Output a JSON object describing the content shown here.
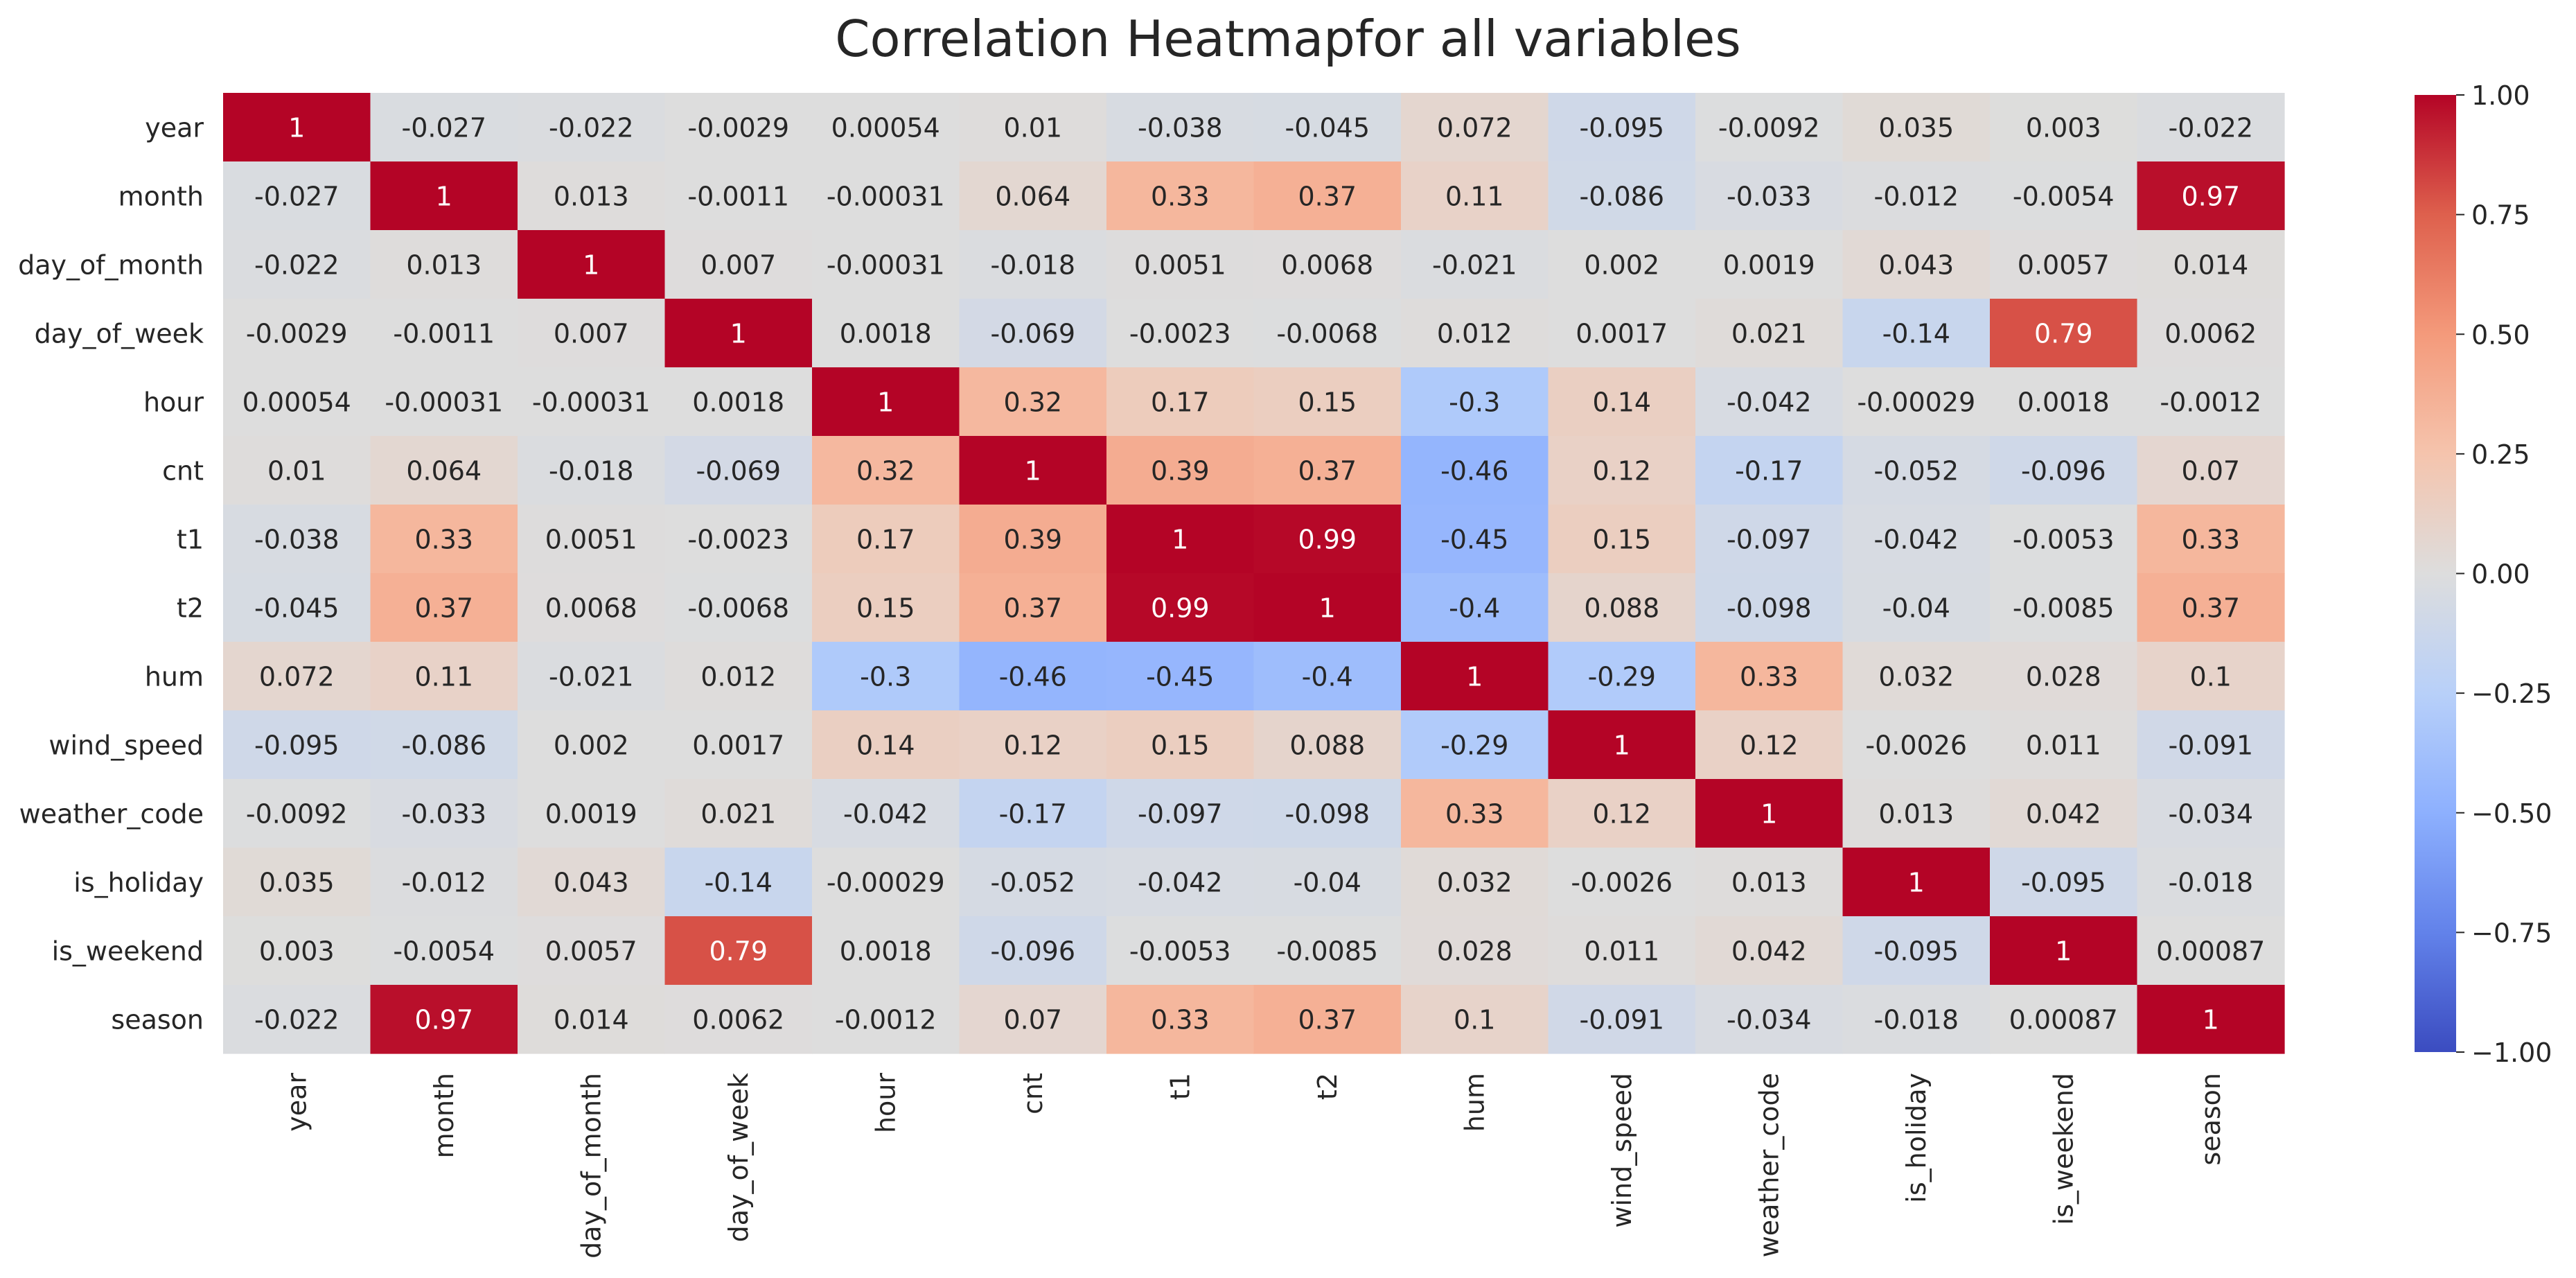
{
  "chart_data": {
    "type": "heatmap",
    "title": "Correlation Heatmapfor all variables",
    "row_labels": [
      "year",
      "month",
      "day_of_month",
      "day_of_week",
      "hour",
      "cnt",
      "t1",
      "t2",
      "hum",
      "wind_speed",
      "weather_code",
      "is_holiday",
      "is_weekend",
      "season"
    ],
    "col_labels": [
      "year",
      "month",
      "day_of_month",
      "day_of_week",
      "hour",
      "cnt",
      "t1",
      "t2",
      "hum",
      "wind_speed",
      "weather_code",
      "is_holiday",
      "is_weekend",
      "season"
    ],
    "values": [
      [
        "1",
        "-0.027",
        "-0.022",
        "-0.0029",
        "0.00054",
        "0.01",
        "-0.038",
        "-0.045",
        "0.072",
        "-0.095",
        "-0.0092",
        "0.035",
        "0.003",
        "-0.022"
      ],
      [
        "-0.027",
        "1",
        "0.013",
        "-0.0011",
        "-0.00031",
        "0.064",
        "0.33",
        "0.37",
        "0.11",
        "-0.086",
        "-0.033",
        "-0.012",
        "-0.0054",
        "0.97"
      ],
      [
        "-0.022",
        "0.013",
        "1",
        "0.007",
        "-0.00031",
        "-0.018",
        "0.0051",
        "0.0068",
        "-0.021",
        "0.002",
        "0.0019",
        "0.043",
        "0.0057",
        "0.014"
      ],
      [
        "-0.0029",
        "-0.0011",
        "0.007",
        "1",
        "0.0018",
        "-0.069",
        "-0.0023",
        "-0.0068",
        "0.012",
        "0.0017",
        "0.021",
        "-0.14",
        "0.79",
        "0.0062"
      ],
      [
        "0.00054",
        "-0.00031",
        "-0.00031",
        "0.0018",
        "1",
        "0.32",
        "0.17",
        "0.15",
        "-0.3",
        "0.14",
        "-0.042",
        "-0.00029",
        "0.0018",
        "-0.0012"
      ],
      [
        "0.01",
        "0.064",
        "-0.018",
        "-0.069",
        "0.32",
        "1",
        "0.39",
        "0.37",
        "-0.46",
        "0.12",
        "-0.17",
        "-0.052",
        "-0.096",
        "0.07"
      ],
      [
        "-0.038",
        "0.33",
        "0.0051",
        "-0.0023",
        "0.17",
        "0.39",
        "1",
        "0.99",
        "-0.45",
        "0.15",
        "-0.097",
        "-0.042",
        "-0.0053",
        "0.33"
      ],
      [
        "-0.045",
        "0.37",
        "0.0068",
        "-0.0068",
        "0.15",
        "0.37",
        "0.99",
        "1",
        "-0.4",
        "0.088",
        "-0.098",
        "-0.04",
        "-0.0085",
        "0.37"
      ],
      [
        "0.072",
        "0.11",
        "-0.021",
        "0.012",
        "-0.3",
        "-0.46",
        "-0.45",
        "-0.4",
        "1",
        "-0.29",
        "0.33",
        "0.032",
        "0.028",
        "0.1"
      ],
      [
        "-0.095",
        "-0.086",
        "0.002",
        "0.0017",
        "0.14",
        "0.12",
        "0.15",
        "0.088",
        "-0.29",
        "1",
        "0.12",
        "-0.0026",
        "0.011",
        "-0.091"
      ],
      [
        "-0.0092",
        "-0.033",
        "0.0019",
        "0.021",
        "-0.042",
        "-0.17",
        "-0.097",
        "-0.098",
        "0.33",
        "0.12",
        "1",
        "0.013",
        "0.042",
        "-0.034"
      ],
      [
        "0.035",
        "-0.012",
        "0.043",
        "-0.14",
        "-0.00029",
        "-0.052",
        "-0.042",
        "-0.04",
        "0.032",
        "-0.0026",
        "0.013",
        "1",
        "-0.095",
        "-0.018"
      ],
      [
        "0.003",
        "-0.0054",
        "0.0057",
        "0.79",
        "0.0018",
        "-0.096",
        "-0.0053",
        "-0.0085",
        "0.028",
        "0.011",
        "0.042",
        "-0.095",
        "1",
        "0.00087"
      ],
      [
        "-0.022",
        "0.97",
        "0.014",
        "0.0062",
        "-0.0012",
        "0.07",
        "0.33",
        "0.37",
        "0.1",
        "-0.091",
        "-0.034",
        "-0.018",
        "0.00087",
        "1"
      ]
    ],
    "colormap": "coolwarm",
    "vmin": -1.0,
    "vmax": 1.0,
    "colorbar_ticks": [
      "1.00",
      "0.75",
      "0.50",
      "0.25",
      "0.00",
      "−0.25",
      "−0.50",
      "−0.75",
      "−1.00"
    ],
    "colorbar_tick_values": [
      1.0,
      0.75,
      0.5,
      0.25,
      0.0,
      -0.25,
      -0.5,
      -0.75,
      -1.0
    ],
    "annotated": true,
    "grid": false
  }
}
